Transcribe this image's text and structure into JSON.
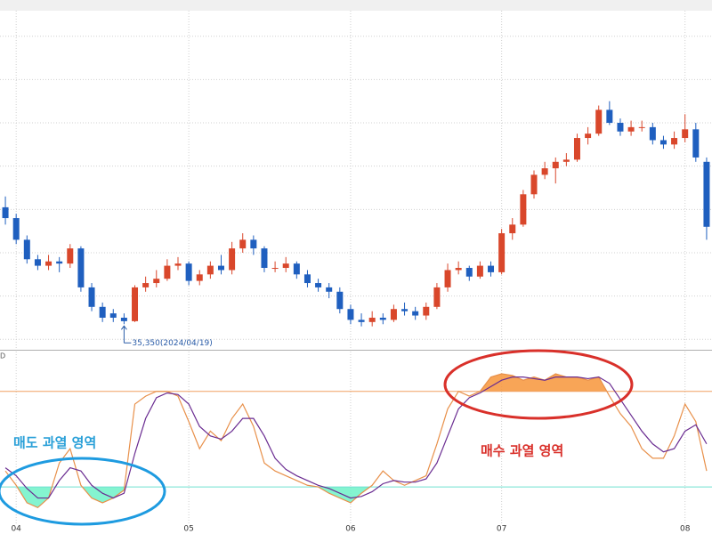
{
  "chart_data": [
    {
      "type": "candlestick",
      "up_color": "#d9472b",
      "down_color": "#1f5fbf",
      "open": [
        38050,
        37800,
        37300,
        36850,
        36700,
        36800,
        36750,
        37100,
        36200,
        35750,
        35600,
        35500,
        35420,
        36200,
        36300,
        36400,
        36700,
        36750,
        36350,
        36500,
        36700,
        36600,
        37100,
        37300,
        37100,
        36650,
        36650,
        36750,
        36500,
        36300,
        36200,
        36100,
        35700,
        35450,
        35400,
        35500,
        35450,
        35700,
        35650,
        35550,
        35750,
        36200,
        36600,
        36650,
        36450,
        36700,
        36550,
        37450,
        37650,
        38350,
        38800,
        38950,
        39100,
        39150,
        39650,
        39750,
        40300,
        40000,
        39800,
        39900,
        39900,
        39600,
        39500,
        39650,
        39850,
        39100
      ],
      "high": [
        38300,
        37900,
        37400,
        36950,
        36950,
        36900,
        37200,
        37150,
        36300,
        35850,
        35700,
        35600,
        36250,
        36450,
        36600,
        36850,
        36900,
        36800,
        36600,
        36800,
        36950,
        37250,
        37450,
        37400,
        37150,
        36800,
        36900,
        36800,
        36600,
        36400,
        36300,
        36200,
        35800,
        35600,
        35650,
        35600,
        35800,
        35850,
        35750,
        35850,
        36300,
        36750,
        36800,
        36700,
        36800,
        36800,
        37550,
        37800,
        38450,
        38900,
        39100,
        39200,
        39300,
        39750,
        39900,
        40400,
        40500,
        40100,
        40050,
        40050,
        40000,
        39700,
        39800,
        40200,
        40000,
        39200
      ],
      "low": [
        37650,
        37200,
        36750,
        36600,
        36600,
        36550,
        36650,
        36100,
        35650,
        35400,
        35400,
        35350,
        35400,
        36100,
        36200,
        36350,
        36600,
        36250,
        36250,
        36400,
        36500,
        36500,
        37000,
        36950,
        36550,
        36550,
        36550,
        36400,
        36200,
        36100,
        35950,
        35600,
        35350,
        35300,
        35300,
        35350,
        35400,
        35550,
        35450,
        35450,
        35700,
        36100,
        36500,
        36350,
        36400,
        36450,
        36500,
        37300,
        37600,
        38250,
        38700,
        38600,
        39000,
        39100,
        39500,
        39700,
        39950,
        39700,
        39700,
        39800,
        39500,
        39400,
        39400,
        39550,
        39100,
        37300
      ],
      "close": [
        37800,
        37300,
        36850,
        36700,
        36800,
        36750,
        37100,
        36200,
        35750,
        35500,
        35500,
        35420,
        36200,
        36300,
        36400,
        36700,
        36750,
        36350,
        36500,
        36700,
        36600,
        37100,
        37300,
        37100,
        36650,
        36650,
        36750,
        36500,
        36300,
        36200,
        36100,
        35700,
        35450,
        35400,
        35500,
        35450,
        35700,
        35650,
        35550,
        35750,
        36200,
        36600,
        36650,
        36450,
        36700,
        36550,
        37450,
        37650,
        38350,
        38800,
        38950,
        39100,
        39150,
        39650,
        39750,
        40300,
        40000,
        39800,
        39900,
        39900,
        39600,
        39500,
        39650,
        39850,
        39200,
        37600
      ],
      "ylim": [
        34780,
        42590
      ],
      "ygrid": [
        35000,
        36000,
        37000,
        38000,
        39000,
        40000,
        41000,
        42000
      ],
      "annotation": {
        "label": "35,350(2024/04/19)",
        "value": 35350,
        "color": "#2a5ca8"
      }
    },
    {
      "type": "line",
      "panel_label": "D",
      "categories": [
        null,
        "04",
        null,
        null,
        null,
        null,
        null,
        null,
        null,
        null,
        null,
        null,
        null,
        null,
        null,
        null,
        null,
        "05",
        null,
        null,
        null,
        null,
        null,
        null,
        null,
        null,
        null,
        null,
        null,
        null,
        null,
        null,
        "06",
        null,
        null,
        null,
        null,
        null,
        null,
        null,
        null,
        null,
        null,
        null,
        null,
        null,
        "07",
        null,
        null,
        null,
        null,
        null,
        null,
        null,
        null,
        null,
        null,
        null,
        null,
        null,
        null,
        null,
        null,
        "08",
        null,
        null
      ],
      "series": [
        {
          "color": "#e8904a",
          "values": [
            30,
            21,
            10,
            7,
            13,
            35,
            44,
            21,
            13,
            10,
            13,
            18,
            72,
            77,
            80,
            80,
            77,
            61,
            44,
            55,
            49,
            63,
            72,
            58,
            35,
            30,
            27,
            24,
            21,
            20,
            16,
            13,
            10,
            16,
            21,
            30,
            24,
            21,
            24,
            27,
            47,
            69,
            80,
            77,
            80,
            89,
            91,
            90,
            87,
            89,
            87,
            91,
            89,
            89,
            87,
            89,
            77,
            66,
            58,
            44,
            38,
            38,
            52,
            72,
            61,
            30
          ]
        },
        {
          "color": "#6a2c91",
          "values": [
            32,
            27,
            19,
            13,
            13,
            24,
            32,
            30,
            21,
            16,
            13,
            16,
            41,
            63,
            76,
            79,
            78,
            72,
            58,
            52,
            50,
            55,
            63,
            63,
            52,
            38,
            31,
            27,
            24,
            21,
            19,
            16,
            13,
            14,
            17,
            22,
            24,
            23,
            23,
            25,
            35,
            52,
            69,
            76,
            79,
            83,
            87,
            89,
            89,
            88,
            87,
            89,
            89,
            89,
            88,
            89,
            85,
            75,
            65,
            55,
            47,
            42,
            44,
            55,
            59,
            47
          ]
        }
      ],
      "ylim": [
        -4,
        105
      ],
      "levels": [
        {
          "value": 80,
          "color": "#f0a060",
          "fill": "#f7953a",
          "side": "above"
        },
        {
          "value": 20,
          "color": "#6fe0d0",
          "fill": "#6ff2c8",
          "side": "below"
        }
      ],
      "annotations": [
        {
          "text": "매도 과열 영역",
          "color": "#2aa0d8"
        },
        {
          "text": "매수 과열 영역",
          "color": "#d9302a"
        }
      ]
    }
  ]
}
